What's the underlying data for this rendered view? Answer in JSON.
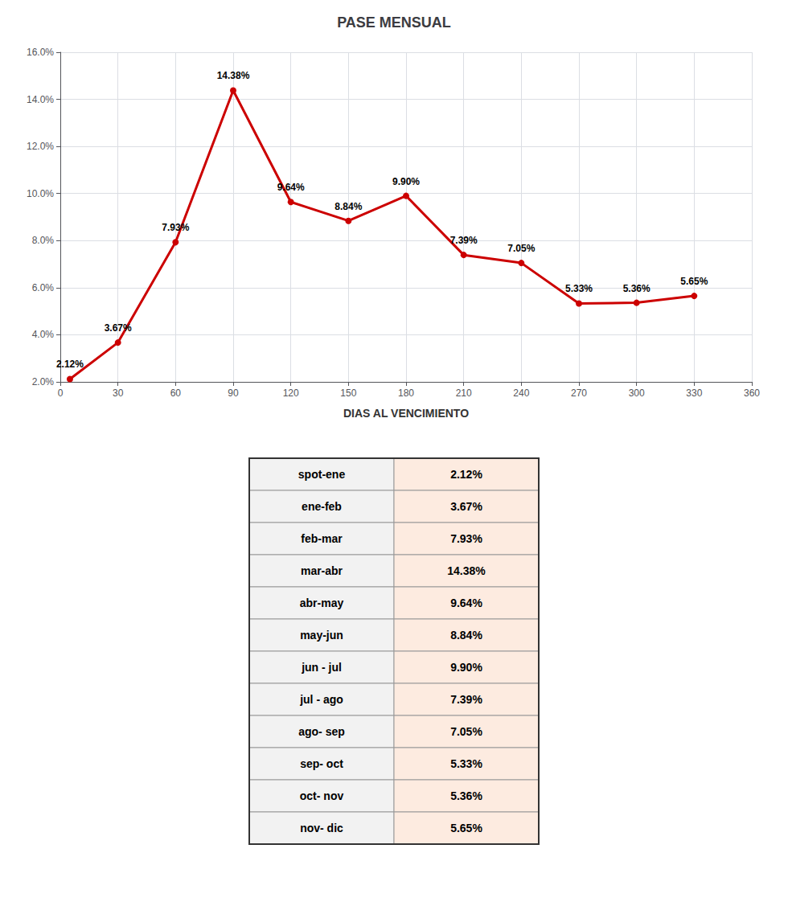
{
  "chart_data": [
    {
      "type": "line",
      "title": "PASE MENSUAL",
      "xlabel": "DIAS AL VENCIMIENTO",
      "x": [
        5,
        30,
        60,
        90,
        120,
        150,
        180,
        210,
        240,
        270,
        300,
        330
      ],
      "values": [
        2.12,
        3.67,
        7.93,
        14.38,
        9.64,
        8.84,
        9.9,
        7.39,
        7.05,
        5.33,
        5.36,
        5.65
      ],
      "value_labels": [
        "2.12%",
        "3.67%",
        "7.93%",
        "14.38%",
        "9.64%",
        "8.84%",
        "9.90%",
        "7.39%",
        "7.05%",
        "5.33%",
        "5.36%",
        "5.65%"
      ],
      "data_labels": true,
      "color": "#CC0000",
      "marker": "circle",
      "xlim": [
        0,
        360
      ],
      "xticks": [
        0,
        30,
        60,
        90,
        120,
        150,
        180,
        210,
        240,
        270,
        300,
        330,
        360
      ],
      "ylim": [
        2.0,
        16.0
      ],
      "yticks": [
        {
          "value": 2.0,
          "label": "2.0%"
        },
        {
          "value": 4.0,
          "label": "4.0%"
        },
        {
          "value": 6.0,
          "label": "6.0%"
        },
        {
          "value": 8.0,
          "label": "8.0%"
        },
        {
          "value": 10.0,
          "label": "10.0%"
        },
        {
          "value": 12.0,
          "label": "12.0%"
        },
        {
          "value": 14.0,
          "label": "14.0%"
        },
        {
          "value": 16.0,
          "label": "16.0%"
        }
      ],
      "grid": true
    },
    {
      "type": "table",
      "rows": [
        [
          "spot-ene",
          "2.12%"
        ],
        [
          "ene-feb",
          "3.67%"
        ],
        [
          "feb-mar",
          "7.93%"
        ],
        [
          "mar-abr",
          "14.38%"
        ],
        [
          "abr-may",
          "9.64%"
        ],
        [
          "may-jun",
          "8.84%"
        ],
        [
          "jun - jul",
          "9.90%"
        ],
        [
          "jul - ago",
          "7.39%"
        ],
        [
          "ago- sep",
          "7.05%"
        ],
        [
          "sep- oct",
          "5.33%"
        ],
        [
          "oct- nov",
          "5.36%"
        ],
        [
          "nov- dic",
          "5.65%"
        ]
      ]
    }
  ]
}
